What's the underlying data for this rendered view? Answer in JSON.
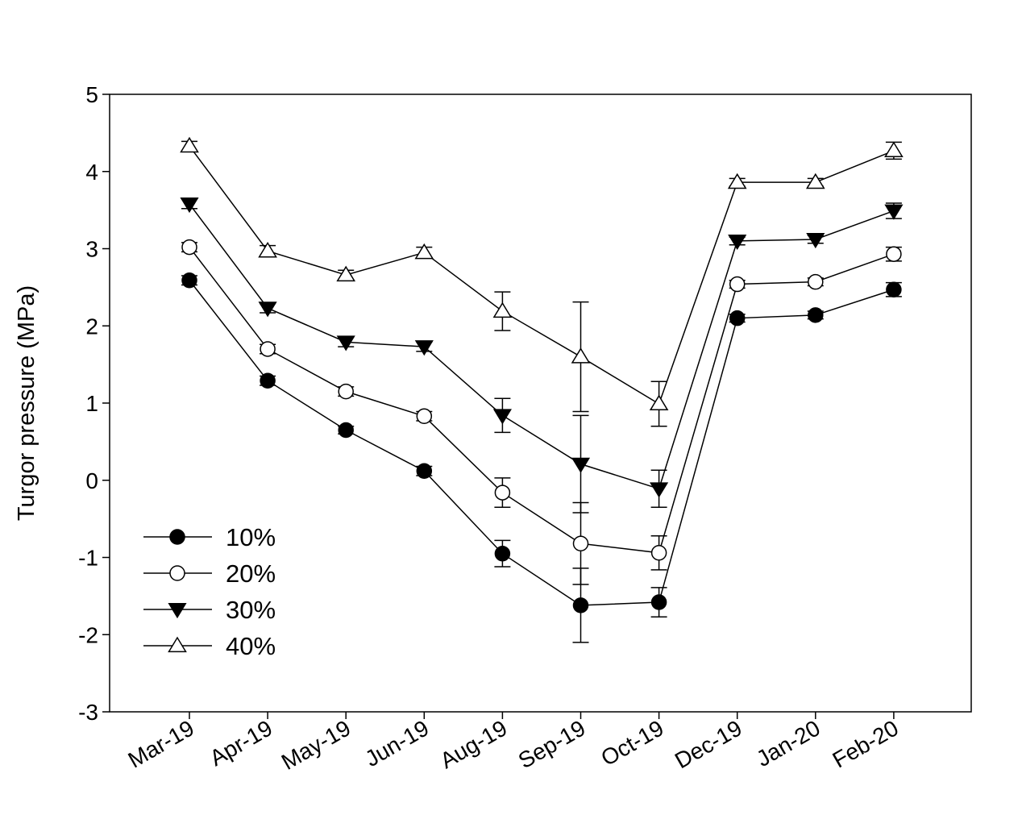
{
  "chart_data": {
    "type": "line",
    "title": "",
    "xlabel": "",
    "ylabel": "Turgor pressure (MPa)",
    "ylim": [
      -3,
      5
    ],
    "yticks": [
      "-3",
      "-2",
      "-1",
      "0",
      "1",
      "2",
      "3",
      "4",
      "5"
    ],
    "categories": [
      "Mar-19",
      "Apr-19",
      "May-19",
      "Jun-19",
      "Aug-19",
      "Sep-19",
      "Oct-19",
      "Dec-19",
      "Jan-20",
      "Feb-20"
    ],
    "legend_position": "bottom-left",
    "grid": false,
    "series": [
      {
        "name": "10%",
        "marker": "filled-circle",
        "values": [
          2.59,
          1.29,
          0.65,
          0.12,
          -0.95,
          -1.62,
          -1.58,
          2.1,
          2.14,
          2.47
        ],
        "errors": [
          0.06,
          0.06,
          0.05,
          0.06,
          0.17,
          0.48,
          0.19,
          0.05,
          0.05,
          0.09
        ]
      },
      {
        "name": "20%",
        "marker": "open-circle",
        "values": [
          3.02,
          1.7,
          1.15,
          0.83,
          -0.16,
          -0.82,
          -0.94,
          2.54,
          2.57,
          2.93
        ],
        "errors": [
          0.06,
          0.06,
          0.06,
          0.06,
          0.19,
          0.53,
          0.22,
          0.05,
          0.05,
          0.09
        ]
      },
      {
        "name": "30%",
        "marker": "filled-triangle-down",
        "values": [
          3.58,
          2.23,
          1.79,
          1.73,
          0.84,
          0.21,
          -0.11,
          3.1,
          3.12,
          3.49
        ],
        "errors": [
          0.06,
          0.06,
          0.06,
          0.06,
          0.22,
          0.63,
          0.24,
          0.05,
          0.05,
          0.1
        ]
      },
      {
        "name": "40%",
        "marker": "open-triangle-up",
        "values": [
          4.33,
          2.97,
          2.66,
          2.95,
          2.19,
          1.6,
          0.99,
          3.86,
          3.86,
          4.27
        ],
        "errors": [
          0.06,
          0.07,
          0.06,
          0.07,
          0.25,
          0.71,
          0.29,
          0.05,
          0.05,
          0.11
        ]
      }
    ]
  }
}
